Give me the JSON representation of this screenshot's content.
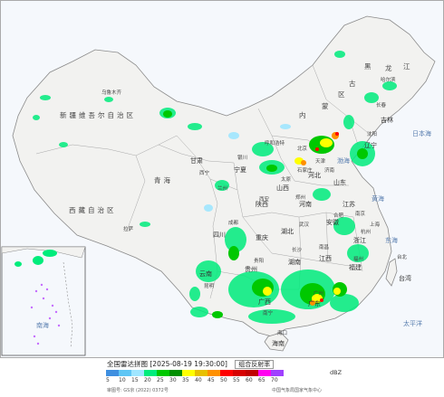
{
  "legend": {
    "title": "全国雷达拼图 [2025-08-19 19:30:00]",
    "product": "组合反射率",
    "unit": "dBZ",
    "levels": [
      "5",
      "10",
      "15",
      "20",
      "25",
      "30",
      "35",
      "40",
      "45",
      "50",
      "55",
      "60",
      "65",
      "70"
    ],
    "colors": [
      "#3f8fe0",
      "#5fc6f5",
      "#9fe6ff",
      "#00ec7c",
      "#00c800",
      "#008f00",
      "#ffff00",
      "#e7c000",
      "#ff9000",
      "#ff0000",
      "#d60000",
      "#c00000",
      "#ff00f0",
      "#a040ff"
    ],
    "footer_left": "审图号: GS京 (2022) 0372号",
    "footer_right": "中国气象局国家气象中心"
  },
  "labels": {
    "provinces": {
      "xinjiang": "新疆维吾尔自治区",
      "xizang": "西藏自治区",
      "qinghai": "青海",
      "heilongjiang_1": "黑",
      "heilongjiang_2": "江",
      "heilongjiang_3": "龙",
      "neimenggu_1": "内",
      "neimenggu_2": "蒙",
      "neimenggu_3": "古",
      "neimenggu_4": "区",
      "jilin": "吉林",
      "liaoning": "辽宁",
      "gansu": "甘肃",
      "ningxia": "宁夏",
      "shanxi": "山西",
      "shaanxi": "陕西",
      "hebei": "河北",
      "shandong": "山东",
      "henan": "河南",
      "jiangsu": "江苏",
      "anhui": "安徽",
      "hubei": "湖北",
      "sichuan": "四川",
      "chongqing": "重庆",
      "guizhou": "贵州",
      "yunnan": "云南",
      "hunan": "湖南",
      "jiangxi": "江西",
      "zhejiang": "浙江",
      "fujian": "福建",
      "guangxi": "广西",
      "guangdong": "广东",
      "hainan": "海南",
      "taiwan": "台湾",
      "beijing": "北京",
      "tianjin": "天津",
      "shanghai": "上海"
    },
    "cities": {
      "urumqi": "乌鲁木齐",
      "lhasa": "拉萨",
      "xining": "西宁",
      "lanzhou": "兰州",
      "yinchuan": "银川",
      "hohhot": "呼和浩特",
      "harbin": "哈尔滨",
      "changchun": "长春",
      "shenyang": "沈阳",
      "xian": "西安",
      "taiyuan": "太原",
      "shijiazhuang": "石家庄",
      "jinan": "济南",
      "zhengzhou": "郑州",
      "nanjing": "南京",
      "hefei": "合肥",
      "wuhan": "武汉",
      "chengdu": "成都",
      "guiyang": "贵阳",
      "kunming": "昆明",
      "changsha": "长沙",
      "nanchang": "南昌",
      "hangzhou": "杭州",
      "fuzhou": "福州",
      "nanning": "南宁",
      "guangzhou": "广州",
      "haikou": "海口",
      "taipei": "台北"
    },
    "seas": {
      "bohai": "渤海",
      "huanghai": "黄海",
      "donghai": "东海",
      "taipingyang": "太平洋",
      "riben": "日本海",
      "nanhai": "南海"
    }
  }
}
